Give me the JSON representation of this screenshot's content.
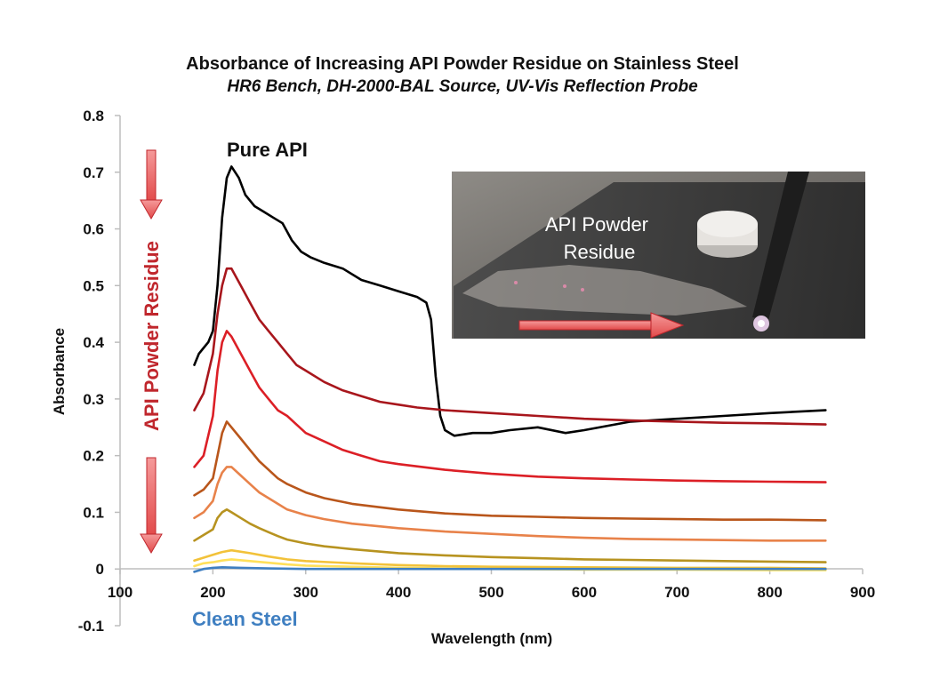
{
  "chart_data": {
    "type": "line",
    "title": "Absorbance of Increasing API Powder Residue on Stainless Steel",
    "subtitle": "HR6 Bench, DH-2000-BAL Source, UV-Vis Reflection Probe",
    "xlabel": "Wavelength (nm)",
    "ylabel": "Absorbance",
    "xlim": [
      100,
      900
    ],
    "ylim": [
      -0.1,
      0.8
    ],
    "x_ticks": [
      100,
      200,
      300,
      400,
      500,
      600,
      700,
      800,
      900
    ],
    "y_ticks": [
      -0.1,
      0,
      0.1,
      0.2,
      0.3,
      0.4,
      0.5,
      0.6,
      0.7,
      0.8
    ],
    "grid": false,
    "legend": "none",
    "series": [
      {
        "color": "#000000",
        "points": [
          [
            180,
            0.36
          ],
          [
            185,
            0.38
          ],
          [
            190,
            0.39
          ],
          [
            195,
            0.4
          ],
          [
            200,
            0.42
          ],
          [
            205,
            0.5
          ],
          [
            210,
            0.62
          ],
          [
            215,
            0.69
          ],
          [
            220,
            0.71
          ],
          [
            228,
            0.69
          ],
          [
            235,
            0.66
          ],
          [
            245,
            0.64
          ],
          [
            255,
            0.63
          ],
          [
            265,
            0.62
          ],
          [
            275,
            0.61
          ],
          [
            285,
            0.58
          ],
          [
            295,
            0.56
          ],
          [
            305,
            0.55
          ],
          [
            320,
            0.54
          ],
          [
            340,
            0.53
          ],
          [
            360,
            0.51
          ],
          [
            380,
            0.5
          ],
          [
            400,
            0.49
          ],
          [
            420,
            0.48
          ],
          [
            430,
            0.47
          ],
          [
            435,
            0.44
          ],
          [
            440,
            0.34
          ],
          [
            445,
            0.27
          ],
          [
            450,
            0.245
          ],
          [
            460,
            0.235
          ],
          [
            480,
            0.24
          ],
          [
            500,
            0.24
          ],
          [
            520,
            0.245
          ],
          [
            550,
            0.25
          ],
          [
            580,
            0.24
          ],
          [
            600,
            0.245
          ],
          [
            650,
            0.26
          ],
          [
            700,
            0.265
          ],
          [
            750,
            0.27
          ],
          [
            800,
            0.275
          ],
          [
            860,
            0.28
          ]
        ]
      },
      {
        "color": "#a8161c",
        "points": [
          [
            180,
            0.28
          ],
          [
            190,
            0.31
          ],
          [
            200,
            0.38
          ],
          [
            205,
            0.45
          ],
          [
            210,
            0.5
          ],
          [
            215,
            0.53
          ],
          [
            220,
            0.53
          ],
          [
            230,
            0.5
          ],
          [
            240,
            0.47
          ],
          [
            250,
            0.44
          ],
          [
            260,
            0.42
          ],
          [
            270,
            0.4
          ],
          [
            280,
            0.38
          ],
          [
            290,
            0.36
          ],
          [
            300,
            0.35
          ],
          [
            320,
            0.33
          ],
          [
            340,
            0.315
          ],
          [
            360,
            0.305
          ],
          [
            380,
            0.295
          ],
          [
            400,
            0.29
          ],
          [
            420,
            0.285
          ],
          [
            450,
            0.28
          ],
          [
            500,
            0.275
          ],
          [
            550,
            0.27
          ],
          [
            600,
            0.265
          ],
          [
            650,
            0.262
          ],
          [
            700,
            0.26
          ],
          [
            750,
            0.258
          ],
          [
            800,
            0.257
          ],
          [
            860,
            0.255
          ]
        ]
      },
      {
        "color": "#dc1f26",
        "points": [
          [
            180,
            0.18
          ],
          [
            190,
            0.2
          ],
          [
            200,
            0.27
          ],
          [
            205,
            0.35
          ],
          [
            210,
            0.4
          ],
          [
            215,
            0.42
          ],
          [
            220,
            0.41
          ],
          [
            230,
            0.38
          ],
          [
            240,
            0.35
          ],
          [
            250,
            0.32
          ],
          [
            260,
            0.3
          ],
          [
            270,
            0.28
          ],
          [
            280,
            0.27
          ],
          [
            290,
            0.255
          ],
          [
            300,
            0.24
          ],
          [
            320,
            0.225
          ],
          [
            340,
            0.21
          ],
          [
            360,
            0.2
          ],
          [
            380,
            0.19
          ],
          [
            400,
            0.185
          ],
          [
            450,
            0.175
          ],
          [
            500,
            0.168
          ],
          [
            550,
            0.163
          ],
          [
            600,
            0.16
          ],
          [
            650,
            0.158
          ],
          [
            700,
            0.156
          ],
          [
            750,
            0.155
          ],
          [
            800,
            0.154
          ],
          [
            860,
            0.153
          ]
        ]
      },
      {
        "color": "#b9561b",
        "points": [
          [
            180,
            0.13
          ],
          [
            190,
            0.14
          ],
          [
            200,
            0.16
          ],
          [
            205,
            0.2
          ],
          [
            210,
            0.24
          ],
          [
            215,
            0.26
          ],
          [
            220,
            0.25
          ],
          [
            230,
            0.23
          ],
          [
            240,
            0.21
          ],
          [
            250,
            0.19
          ],
          [
            260,
            0.175
          ],
          [
            270,
            0.16
          ],
          [
            280,
            0.15
          ],
          [
            300,
            0.135
          ],
          [
            320,
            0.125
          ],
          [
            350,
            0.115
          ],
          [
            400,
            0.105
          ],
          [
            450,
            0.098
          ],
          [
            500,
            0.094
          ],
          [
            550,
            0.092
          ],
          [
            600,
            0.09
          ],
          [
            650,
            0.089
          ],
          [
            700,
            0.088
          ],
          [
            750,
            0.087
          ],
          [
            800,
            0.087
          ],
          [
            860,
            0.086
          ]
        ]
      },
      {
        "color": "#e8824a",
        "points": [
          [
            180,
            0.09
          ],
          [
            190,
            0.1
          ],
          [
            200,
            0.12
          ],
          [
            205,
            0.15
          ],
          [
            210,
            0.17
          ],
          [
            215,
            0.18
          ],
          [
            220,
            0.18
          ],
          [
            230,
            0.165
          ],
          [
            240,
            0.15
          ],
          [
            250,
            0.135
          ],
          [
            260,
            0.125
          ],
          [
            270,
            0.115
          ],
          [
            280,
            0.105
          ],
          [
            300,
            0.095
          ],
          [
            320,
            0.088
          ],
          [
            350,
            0.08
          ],
          [
            400,
            0.072
          ],
          [
            450,
            0.066
          ],
          [
            500,
            0.062
          ],
          [
            550,
            0.058
          ],
          [
            600,
            0.055
          ],
          [
            650,
            0.053
          ],
          [
            700,
            0.052
          ],
          [
            750,
            0.051
          ],
          [
            800,
            0.05
          ],
          [
            860,
            0.05
          ]
        ]
      },
      {
        "color": "#b79320",
        "points": [
          [
            180,
            0.05
          ],
          [
            190,
            0.06
          ],
          [
            200,
            0.07
          ],
          [
            205,
            0.09
          ],
          [
            210,
            0.1
          ],
          [
            215,
            0.105
          ],
          [
            220,
            0.1
          ],
          [
            230,
            0.09
          ],
          [
            240,
            0.08
          ],
          [
            250,
            0.072
          ],
          [
            260,
            0.065
          ],
          [
            270,
            0.058
          ],
          [
            280,
            0.052
          ],
          [
            300,
            0.045
          ],
          [
            320,
            0.04
          ],
          [
            350,
            0.035
          ],
          [
            400,
            0.028
          ],
          [
            450,
            0.024
          ],
          [
            500,
            0.021
          ],
          [
            550,
            0.019
          ],
          [
            600,
            0.017
          ],
          [
            650,
            0.016
          ],
          [
            700,
            0.015
          ],
          [
            750,
            0.014
          ],
          [
            800,
            0.013
          ],
          [
            860,
            0.012
          ]
        ]
      },
      {
        "color": "#f2c23a",
        "points": [
          [
            180,
            0.015
          ],
          [
            190,
            0.02
          ],
          [
            200,
            0.025
          ],
          [
            210,
            0.03
          ],
          [
            220,
            0.033
          ],
          [
            240,
            0.028
          ],
          [
            260,
            0.022
          ],
          [
            280,
            0.017
          ],
          [
            300,
            0.014
          ],
          [
            350,
            0.01
          ],
          [
            400,
            0.007
          ],
          [
            450,
            0.005
          ],
          [
            500,
            0.004
          ],
          [
            600,
            0.003
          ],
          [
            700,
            0.002
          ],
          [
            800,
            0.002
          ],
          [
            860,
            0.001
          ]
        ]
      },
      {
        "color": "#ffe05a",
        "points": [
          [
            180,
            0.005
          ],
          [
            190,
            0.01
          ],
          [
            200,
            0.012
          ],
          [
            210,
            0.015
          ],
          [
            220,
            0.017
          ],
          [
            240,
            0.014
          ],
          [
            260,
            0.011
          ],
          [
            280,
            0.008
          ],
          [
            300,
            0.006
          ],
          [
            350,
            0.004
          ],
          [
            400,
            0.002
          ],
          [
            450,
            0.001
          ],
          [
            500,
            0.0
          ],
          [
            600,
            -0.001
          ],
          [
            700,
            -0.001
          ],
          [
            800,
            -0.002
          ],
          [
            860,
            -0.002
          ]
        ]
      },
      {
        "color": "#3f7fc1",
        "points": [
          [
            180,
            -0.005
          ],
          [
            190,
            0.0
          ],
          [
            200,
            0.002
          ],
          [
            210,
            0.003
          ],
          [
            230,
            0.002
          ],
          [
            260,
            0.001
          ],
          [
            300,
            0.0
          ],
          [
            350,
            0.0
          ],
          [
            400,
            0.0
          ],
          [
            500,
            0.0
          ],
          [
            600,
            0.0
          ],
          [
            700,
            0.0
          ],
          [
            800,
            0.0
          ],
          [
            860,
            0.0
          ]
        ]
      }
    ],
    "annotations": {
      "pure_api": "Pure API",
      "clean_steel": "Clean Steel",
      "residue_axis": "API Powder Residue",
      "photo_label": "API Powder\nResidue"
    }
  }
}
